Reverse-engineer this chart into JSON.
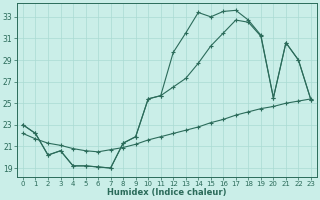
{
  "xlabel": "Humidex (Indice chaleur)",
  "bg_color": "#caeee8",
  "line_color": "#2b6b5a",
  "grid_color": "#aadbd3",
  "xlim": [
    -0.5,
    23.5
  ],
  "ylim": [
    18.2,
    34.3
  ],
  "yticks": [
    19,
    21,
    23,
    25,
    27,
    29,
    31,
    33
  ],
  "xticks": [
    0,
    1,
    2,
    3,
    4,
    5,
    6,
    7,
    8,
    9,
    10,
    11,
    12,
    13,
    14,
    15,
    16,
    17,
    18,
    19,
    20,
    21,
    22,
    23
  ],
  "curve1_x": [
    0,
    1,
    2,
    3,
    4,
    5,
    6,
    7,
    8,
    9,
    10,
    11,
    12,
    13,
    14,
    15,
    16,
    17,
    18,
    19,
    20,
    21,
    22,
    23
  ],
  "curve1_y": [
    23.0,
    22.2,
    20.2,
    20.6,
    19.2,
    19.2,
    19.1,
    19.0,
    21.3,
    21.9,
    25.4,
    25.7,
    29.7,
    31.5,
    33.4,
    33.0,
    33.5,
    33.6,
    32.7,
    31.3,
    25.5,
    30.6,
    29.0,
    25.3
  ],
  "curve2_x": [
    0,
    1,
    2,
    3,
    4,
    5,
    6,
    7,
    8,
    9,
    10,
    11,
    12,
    13,
    14,
    15,
    16,
    17,
    18,
    19,
    20,
    21,
    22,
    23
  ],
  "curve2_y": [
    23.0,
    22.2,
    20.2,
    20.6,
    19.2,
    19.2,
    19.1,
    19.0,
    21.3,
    21.9,
    25.4,
    25.7,
    26.5,
    27.3,
    28.7,
    30.3,
    31.5,
    32.7,
    32.5,
    31.2,
    25.5,
    30.6,
    29.0,
    25.3
  ],
  "curve3_x": [
    0,
    1,
    2,
    3,
    4,
    5,
    6,
    7,
    8,
    9,
    10,
    11,
    12,
    13,
    14,
    15,
    16,
    17,
    18,
    19,
    20,
    21,
    22,
    23
  ],
  "curve3_y": [
    22.2,
    21.7,
    21.3,
    21.1,
    20.8,
    20.6,
    20.5,
    20.7,
    20.9,
    21.2,
    21.6,
    21.9,
    22.2,
    22.5,
    22.8,
    23.2,
    23.5,
    23.9,
    24.2,
    24.5,
    24.7,
    25.0,
    25.2,
    25.4
  ]
}
